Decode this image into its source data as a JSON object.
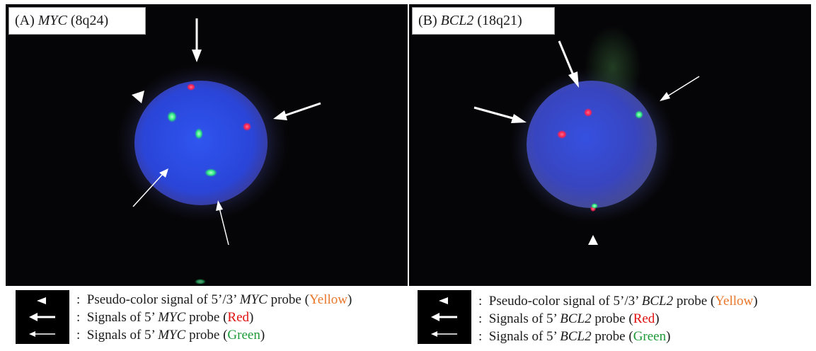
{
  "panels": [
    {
      "label_prefix": "(A) ",
      "gene": "MYC",
      "locus": " (8q24)"
    },
    {
      "label_prefix": "(B) ",
      "gene": "BCL2",
      "locus": " (18q21)"
    }
  ],
  "legends": [
    {
      "row1": {
        "colon": ":",
        "pre": "Pseudo-color signal of 5’/3’ ",
        "gene": "MYC",
        "post": " probe (",
        "color": "Yellow",
        "close": ")"
      },
      "row2": {
        "colon": ":",
        "pre": "Signals of 5’ ",
        "gene": "MYC",
        "post": " probe (",
        "color": "Red",
        "close": ")"
      },
      "row3": {
        "colon": ":",
        "pre": "Signals of 5’ ",
        "gene": "MYC",
        "post": " probe (",
        "color": "Green",
        "close": ")"
      }
    },
    {
      "row1": {
        "colon": ":",
        "pre": "Pseudo-color signal of 5’/3’ ",
        "gene": "BCL2",
        "post": " probe (",
        "color": "Yellow",
        "close": ")"
      },
      "row2": {
        "colon": ":",
        "pre": "Signals of 5’ ",
        "gene": "BCL2",
        "post": " probe (",
        "color": "Red",
        "close": ")"
      },
      "row3": {
        "colon": ":",
        "pre": "Signals of 5’ ",
        "gene": "BCL2",
        "post": " probe (",
        "color": "Green",
        "close": ")"
      }
    }
  ],
  "colors": {
    "background": "#050507",
    "nucleus": "#2a45d8",
    "signal_red": "#ff3060",
    "signal_green": "#3dff8a",
    "yellow_text": "#e8772b",
    "red_text": "#e01010",
    "green_text": "#1e9a3a"
  },
  "icons": {
    "arrowhead": "arrowhead-icon",
    "thick_arrow": "thick-arrow-icon",
    "thin_arrow": "thin-arrow-icon"
  }
}
